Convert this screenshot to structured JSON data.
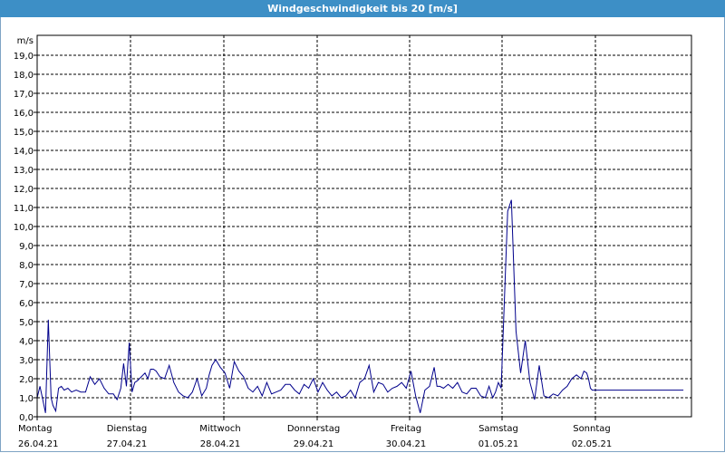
{
  "window": {
    "title": "Windgeschwindigkeit bis 20 [m/s]"
  },
  "chart_data": {
    "type": "line",
    "title": "Windgeschwindigkeit bis 20 [m/s]",
    "ylabel": "m/s",
    "ylim": [
      0,
      20
    ],
    "y_ticks": [
      "0,0",
      "1,0",
      "2,0",
      "3,0",
      "4,0",
      "5,0",
      "6,0",
      "7,0",
      "8,0",
      "9,0",
      "10,0",
      "11,0",
      "12,0",
      "13,0",
      "14,0",
      "15,0",
      "16,0",
      "17,0",
      "18,0",
      "19,0"
    ],
    "x_ticks": [
      {
        "day": "Montag",
        "date": "26.04.21"
      },
      {
        "day": "Dienstag",
        "date": "27.04.21"
      },
      {
        "day": "Mittwoch",
        "date": "28.04.21"
      },
      {
        "day": "Donnerstag",
        "date": "29.04.21"
      },
      {
        "day": "Freitag",
        "date": "30.04.21"
      },
      {
        "day": "Samstag",
        "date": "01.05.21"
      },
      {
        "day": "Sonntag",
        "date": "02.05.21"
      }
    ],
    "x_unit": "days since 26.04.21 00:00",
    "xlim": [
      0,
      7
    ],
    "grid": true,
    "series": [
      {
        "color": "#00008b",
        "x": [
          0.0,
          0.03,
          0.06,
          0.09,
          0.12,
          0.15,
          0.17,
          0.2,
          0.23,
          0.26,
          0.29,
          0.33,
          0.37,
          0.42,
          0.47,
          0.52,
          0.57,
          0.62,
          0.67,
          0.72,
          0.77,
          0.82,
          0.86,
          0.9,
          0.93,
          0.96,
          0.99,
          1.02,
          1.05,
          1.08,
          1.12,
          1.16,
          1.19,
          1.22,
          1.25,
          1.28,
          1.32,
          1.37,
          1.42,
          1.47,
          1.52,
          1.57,
          1.62,
          1.67,
          1.72,
          1.77,
          1.82,
          1.85,
          1.88,
          1.92,
          1.97,
          2.02,
          2.07,
          2.12,
          2.17,
          2.22,
          2.27,
          2.32,
          2.37,
          2.42,
          2.47,
          2.52,
          2.57,
          2.62,
          2.67,
          2.72,
          2.77,
          2.82,
          2.87,
          2.92,
          2.97,
          3.02,
          3.07,
          3.12,
          3.17,
          3.22,
          3.27,
          3.32,
          3.37,
          3.42,
          3.47,
          3.52,
          3.57,
          3.62,
          3.67,
          3.72,
          3.77,
          3.82,
          3.87,
          3.92,
          3.97,
          4.02,
          4.07,
          4.12,
          4.17,
          4.22,
          4.27,
          4.3,
          4.33,
          4.37,
          4.42,
          4.47,
          4.52,
          4.57,
          4.62,
          4.67,
          4.72,
          4.77,
          4.82,
          4.86,
          4.9,
          4.93,
          4.96,
          4.99,
          5.03,
          5.06,
          5.1,
          5.15,
          5.2,
          5.25,
          5.3,
          5.35,
          5.4,
          5.45,
          5.5,
          5.55,
          5.6,
          5.65,
          5.7,
          5.75,
          5.8,
          5.85,
          5.88,
          5.91,
          5.93,
          5.95,
          5.97,
          5.99,
          6.01,
          6.03,
          6.05,
          6.08,
          6.12,
          6.16,
          6.2,
          6.25,
          6.3,
          6.35,
          6.4,
          6.45,
          6.5,
          6.55,
          6.6,
          6.65,
          6.7,
          6.75,
          6.8,
          6.85,
          6.9,
          6.95
        ],
        "y": [
          1.0,
          1.6,
          0.9,
          0.2,
          5.1,
          1.0,
          0.6,
          0.3,
          1.5,
          1.6,
          1.4,
          1.5,
          1.3,
          1.4,
          1.3,
          1.3,
          2.1,
          1.7,
          2.0,
          1.5,
          1.2,
          1.2,
          0.9,
          1.5,
          2.8,
          1.6,
          3.9,
          1.3,
          1.8,
          1.9,
          2.1,
          2.3,
          2.0,
          2.5,
          2.5,
          2.4,
          2.1,
          2.0,
          2.7,
          1.8,
          1.3,
          1.1,
          1.0,
          1.3,
          2.0,
          1.1,
          1.5,
          2.2,
          2.7,
          3.0,
          2.6,
          2.3,
          1.5,
          2.9,
          2.4,
          2.1,
          1.5,
          1.3,
          1.6,
          1.1,
          1.8,
          1.2,
          1.3,
          1.4,
          1.7,
          1.7,
          1.4,
          1.2,
          1.7,
          1.5,
          2.0,
          1.3,
          1.8,
          1.4,
          1.1,
          1.3,
          1.0,
          1.1,
          1.4,
          1.0,
          1.8,
          2.0,
          2.7,
          1.3,
          1.8,
          1.7,
          1.3,
          1.5,
          1.6,
          1.8,
          1.5,
          2.4,
          1.1,
          0.2,
          1.4,
          1.6,
          2.6,
          1.6,
          1.6,
          1.5,
          1.7,
          1.5,
          1.8,
          1.3,
          1.2,
          1.5,
          1.5,
          1.1,
          1.0,
          1.6,
          1.0,
          1.3,
          1.8,
          1.5,
          6.8,
          10.8,
          11.4,
          4.5,
          2.3,
          4.0,
          1.8,
          0.9,
          2.7,
          1.1,
          1.0,
          1.2,
          1.1,
          1.4,
          1.6,
          2.0,
          2.2,
          2.0,
          2.4,
          2.3,
          2.0,
          1.5,
          1.4,
          1.4,
          1.4,
          1.4,
          1.4,
          1.4,
          1.4,
          1.4,
          1.4,
          1.4,
          1.4,
          1.4,
          1.4,
          1.4,
          1.4,
          1.4,
          1.4,
          1.4,
          1.4,
          1.4,
          1.4,
          1.4,
          1.4,
          1.4
        ]
      }
    ]
  }
}
